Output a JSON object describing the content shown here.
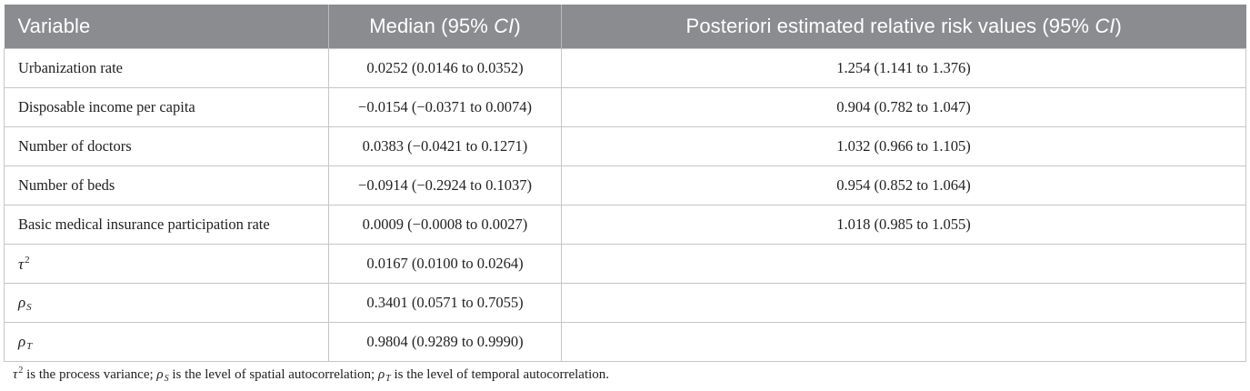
{
  "table": {
    "headers": {
      "variable": "Variable",
      "median_prefix": "Median (95% ",
      "median_ci": "CI",
      "median_suffix": ")",
      "rr_prefix": "Posteriori estimated relative risk values (95% ",
      "rr_ci": "CI",
      "rr_suffix": ")"
    },
    "rows": [
      {
        "variable": "Urbanization rate",
        "median": "0.0252 (0.0146 to 0.0352)",
        "rr": "1.254 (1.141 to 1.376)"
      },
      {
        "variable": "Disposable income per capita",
        "median": "−0.0154 (−0.0371 to 0.0074)",
        "rr": "0.904 (0.782 to 1.047)"
      },
      {
        "variable": "Number of doctors",
        "median": "0.0383 (−0.0421 to 0.1271)",
        "rr": "1.032 (0.966 to 1.105)"
      },
      {
        "variable": "Number of beds",
        "median": "−0.0914 (−0.2924 to 0.1037)",
        "rr": "0.954 (0.852 to 1.064)"
      },
      {
        "variable": "Basic medical insurance participation rate",
        "median": "0.0009 (−0.0008 to 0.0027)",
        "rr": "1.018 (0.985 to 1.055)"
      }
    ],
    "param_rows": [
      {
        "symbol": "τ",
        "sup": "2",
        "sub": "",
        "median": "0.0167 (0.0100 to 0.0264)",
        "rr": ""
      },
      {
        "symbol": "ρ",
        "sup": "",
        "sub": "S",
        "median": "0.3401 (0.0571 to 0.7055)",
        "rr": ""
      },
      {
        "symbol": "ρ",
        "sup": "",
        "sub": "T",
        "median": "0.9804 (0.9289 to 0.9990)",
        "rr": ""
      }
    ]
  },
  "footnote": {
    "tau": "τ",
    "tau_sup": "2",
    "text1": " is the process variance; ",
    "rho_s": "ρ",
    "rho_s_sub": "S",
    "text2": " is the level of spatial autocorrelation; ",
    "rho_t": "ρ",
    "rho_t_sub": "T",
    "text3": " is the level of temporal autocorrelation."
  },
  "colors": {
    "header_bg": "#8a8c8f",
    "header_text": "#ffffff",
    "grid_lines": "#c6c6c6",
    "body_text": "#222222"
  }
}
